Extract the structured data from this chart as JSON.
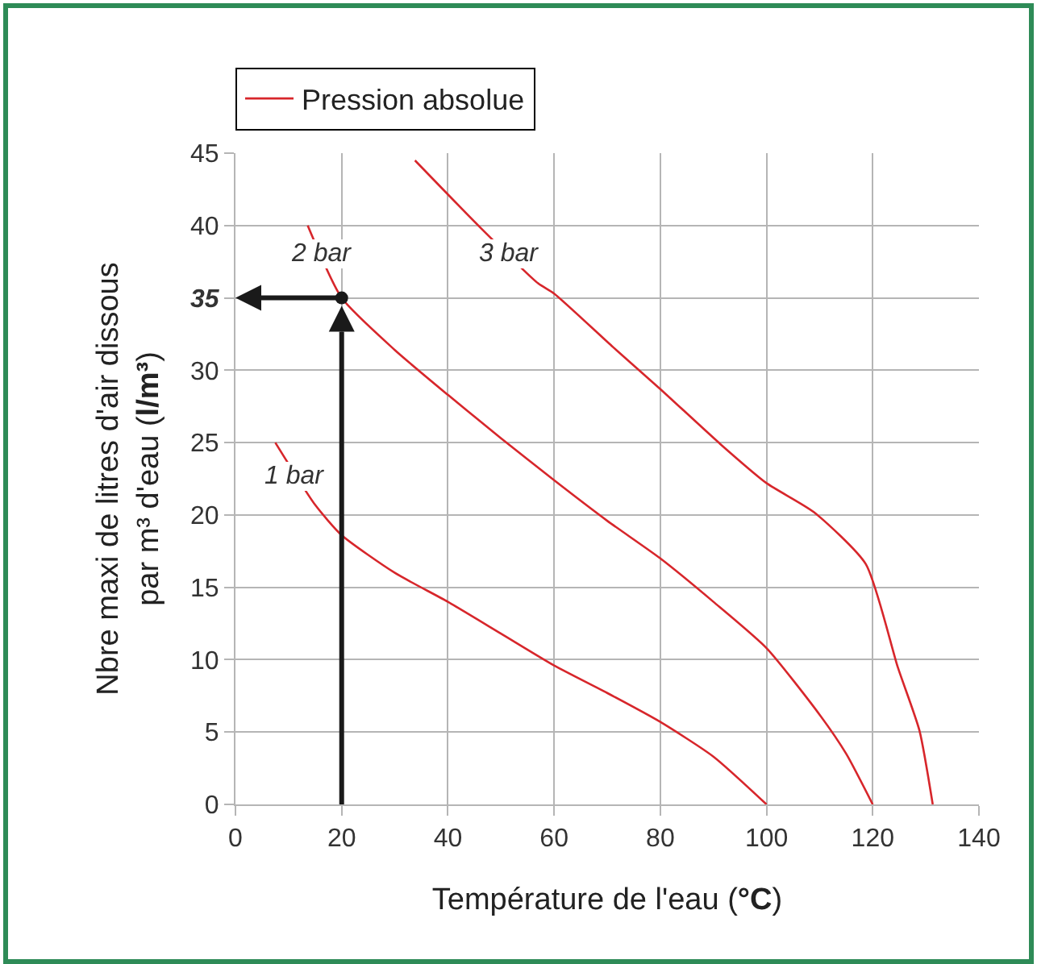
{
  "chart_data": {
    "type": "line",
    "xlabel": "Température de l'eau (°C)",
    "ylabel": "Nbre maxi de litres d'air dissous\npar m³ d'eau (l/m³)",
    "legend": "top left",
    "grid": true,
    "marker": "none",
    "line_style": "solid",
    "xlim": [
      0,
      140
    ],
    "xticks": [
      0,
      20,
      40,
      60,
      80,
      100,
      120,
      140
    ],
    "ylim": [
      0,
      45
    ],
    "yticks": [
      0,
      5,
      10,
      15,
      20,
      25,
      30,
      35,
      40,
      45
    ],
    "series": [
      {
        "name": "Pression absolue",
        "color": "#d7262b",
        "x": [
          7.5,
          15,
          20,
          30,
          40,
          50,
          60,
          70,
          80,
          90,
          100
        ],
        "values": [
          25,
          20.7,
          18.6,
          16,
          14,
          11.8,
          9.6,
          7.7,
          5.7,
          3.3,
          0
        ]
      },
      {
        "color": "#d7262b",
        "x": [
          13.6,
          20,
          30,
          40,
          50,
          60,
          70,
          80,
          90,
          100,
          110,
          115,
          120
        ],
        "values": [
          40,
          35,
          31.4,
          28.3,
          25.3,
          22.4,
          19.6,
          17,
          14,
          10.8,
          6.2,
          3.5,
          0
        ]
      },
      {
        "color": "#d7262b",
        "x": [
          33.8,
          46,
          57,
          60,
          71.1,
          80,
          91.3,
          100,
          108.9,
          118.7,
          124.7,
          128.8,
          131.3
        ],
        "values": [
          44.5,
          39.9,
          36,
          35.3,
          31.6,
          28.7,
          24.9,
          22.2,
          20.2,
          16.6,
          9.5,
          5.1,
          0
        ]
      },
      {
        "type": "scatter",
        "marker": "circle",
        "color": "#1a1a1a",
        "x": [
          20
        ],
        "values": [
          35
        ]
      }
    ],
    "annotations": [
      {
        "text": "1 bar",
        "x": 11,
        "y": 22.7
      },
      {
        "text": "2 bar",
        "x": 16,
        "y": 38
      },
      {
        "text": "3 bar",
        "x": 51.5,
        "y": 38
      }
    ]
  }
}
